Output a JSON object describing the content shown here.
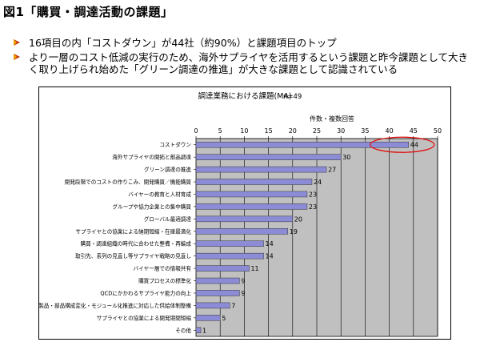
{
  "page": {
    "figure_title": "図1「購買・調達活動の課題」",
    "bullets": [
      {
        "text": "16項目の内「コストダウン」が44社（約90%）と課題項目のトップ"
      },
      {
        "text": "より一層のコスト低減の実行のため、海外サプライヤを活用するという課題と昨今課題として大きく取り上げられ始めた「グリーン調達の推進」が大きな課題として認識されている"
      }
    ]
  },
  "colors": {
    "bar": "#8c8cd6",
    "bar_stroke": "#333333",
    "plot_bg": "#c0c0c0",
    "highlight_ellipse": "#e01010",
    "bullet_marker": "#c03000"
  },
  "chart_data": {
    "type": "bar",
    "orientation": "horizontal",
    "title": "調達業務における課題(MA)",
    "subtitle": "n=49",
    "xlabel": "件数・複数回答",
    "xlim": [
      0,
      50
    ],
    "xticks": [
      0,
      5,
      10,
      15,
      20,
      25,
      30,
      35,
      40,
      45,
      50
    ],
    "grid": true,
    "categories": [
      "コストダウン",
      "海外サプライヤの開拓と部品調達",
      "グリーン調達の推進",
      "開発段階でのコストの作りこみ、開発購買／機能購買",
      "バイヤーの教育と人材育成",
      "グループや協力企業との集中購買",
      "グローバル最適調達",
      "サプライヤとの協業による納期短縮・在庫最適化",
      "購買・調達組織の時代に合わせた整備・再編成",
      "取引先、系列の見直し等サプライヤ戦略の見直し",
      "バイヤー層での情報共有",
      "購買プロセスの標準化",
      "QCDにかかわるサプライヤ能力の向上",
      "製品・部品構成変化・モジュール化推進に対応した供給体制整備",
      "サプライヤとの協業による開発期間短縮",
      "その他"
    ],
    "values": [
      44,
      30,
      27,
      24,
      23,
      23,
      20,
      19,
      14,
      14,
      11,
      9,
      9,
      7,
      5,
      1
    ],
    "annotation": "コストダウンのバーを赤い楕円で強調"
  }
}
